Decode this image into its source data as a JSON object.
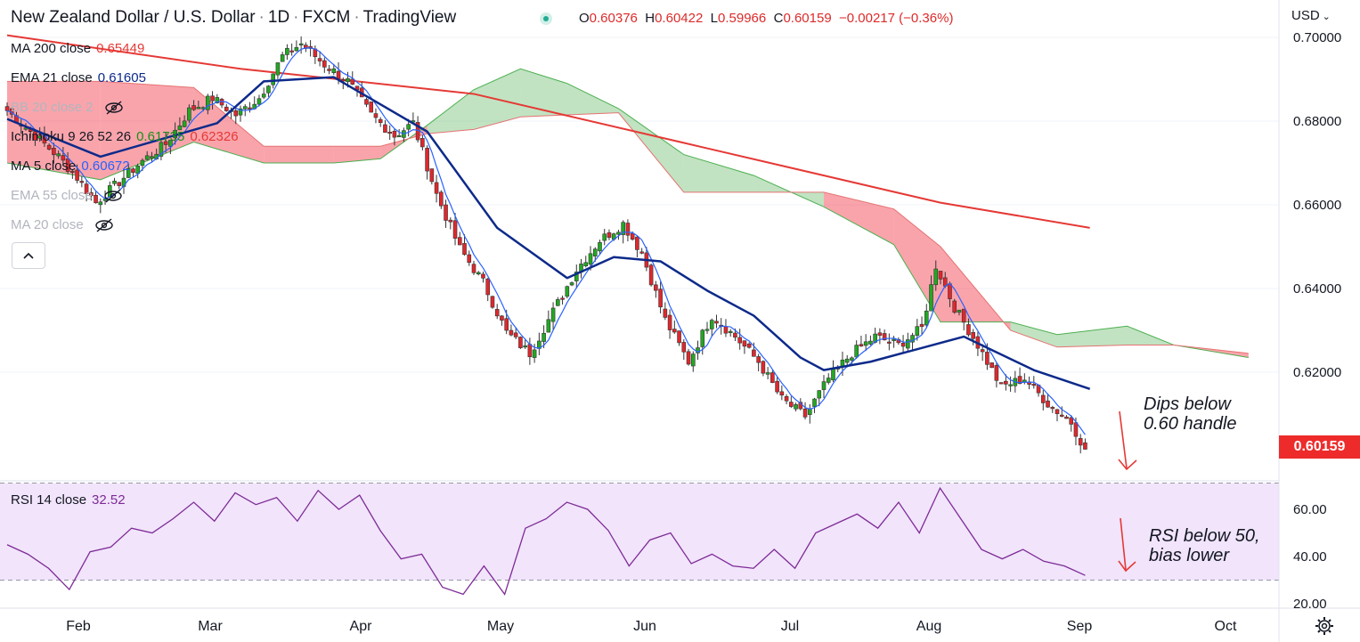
{
  "header": {
    "title": "New Zealand Dollar / U.S. Dollar",
    "interval": "1D",
    "source": "FXCM",
    "platform": "TradingView",
    "ohlc": {
      "o_label": "O",
      "o": "0.60376",
      "h_label": "H",
      "h": "0.60422",
      "l_label": "L",
      "l": "0.59966",
      "c_label": "C",
      "c": "0.60159",
      "change": "−0.00217 (−0.36%)"
    }
  },
  "indicators": [
    {
      "name": "MA 200 close",
      "value": "0.65449",
      "color": "#e53935",
      "visible": true
    },
    {
      "name": "EMA 21 close",
      "value": "0.61605",
      "color": "#0d2a8a",
      "visible": true
    },
    {
      "name": "BB 20 close 2",
      "value": "",
      "visible": false
    },
    {
      "name": "Ichimoku 9 26 52 26",
      "value": "0.61735",
      "value2": "0.62326",
      "color": "#1b8e1b",
      "color2": "#e53935",
      "visible": true
    },
    {
      "name": "MA 5 close",
      "value": "0.60672",
      "color": "#2962ff",
      "visible": true
    },
    {
      "name": "EMA 55 close",
      "value": "",
      "visible": false
    },
    {
      "name": "MA 20 close",
      "value": "",
      "visible": false
    }
  ],
  "currency": "USD",
  "last_price": "0.60159",
  "rsi": {
    "name": "RSI 14 close",
    "value": "32.52",
    "color": "#7e2b96"
  },
  "annotations": {
    "price_note_1": "Dips below",
    "price_note_2": "0.60 handle",
    "rsi_note_1": "RSI below 50,",
    "rsi_note_2": "bias lower"
  },
  "chart_data": {
    "type": "candlestick",
    "y_axis": {
      "ticks": [
        "0.70000",
        "0.68000",
        "0.66000",
        "0.64000",
        "0.62000"
      ],
      "range": [
        0.595,
        0.703
      ]
    },
    "rsi_axis": {
      "ticks": [
        "60.00",
        "40.00",
        "20.00"
      ],
      "range": [
        20,
        70
      ],
      "band": [
        30,
        70
      ]
    },
    "x_axis": {
      "ticks": [
        "Feb",
        "Mar",
        "Apr",
        "May",
        "Jun",
        "Jul",
        "Aug",
        "Sep",
        "Oct"
      ]
    },
    "close_path": [
      {
        "x": 0,
        "y": 0.6825
      },
      {
        "x": 6,
        "y": 0.6765
      },
      {
        "x": 11,
        "y": 0.6715
      },
      {
        "x": 15,
        "y": 0.6665
      },
      {
        "x": 19,
        "y": 0.6605
      },
      {
        "x": 24,
        "y": 0.6655
      },
      {
        "x": 29,
        "y": 0.6705
      },
      {
        "x": 34,
        "y": 0.6745
      },
      {
        "x": 39,
        "y": 0.6825
      },
      {
        "x": 44,
        "y": 0.6855
      },
      {
        "x": 49,
        "y": 0.6815
      },
      {
        "x": 54,
        "y": 0.6855
      },
      {
        "x": 59,
        "y": 0.6955
      },
      {
        "x": 63,
        "y": 0.6985
      },
      {
        "x": 68,
        "y": 0.6935
      },
      {
        "x": 73,
        "y": 0.6895
      },
      {
        "x": 78,
        "y": 0.6815
      },
      {
        "x": 83,
        "y": 0.6765
      },
      {
        "x": 87,
        "y": 0.6795
      },
      {
        "x": 92,
        "y": 0.6625
      },
      {
        "x": 97,
        "y": 0.6495
      },
      {
        "x": 102,
        "y": 0.6415
      },
      {
        "x": 107,
        "y": 0.6295
      },
      {
        "x": 112,
        "y": 0.6245
      },
      {
        "x": 117,
        "y": 0.6345
      },
      {
        "x": 122,
        "y": 0.6445
      },
      {
        "x": 127,
        "y": 0.6515
      },
      {
        "x": 132,
        "y": 0.6555
      },
      {
        "x": 136,
        "y": 0.6485
      },
      {
        "x": 141,
        "y": 0.6325
      },
      {
        "x": 146,
        "y": 0.6225
      },
      {
        "x": 151,
        "y": 0.6335
      },
      {
        "x": 156,
        "y": 0.6285
      },
      {
        "x": 161,
        "y": 0.6225
      },
      {
        "x": 166,
        "y": 0.6135
      },
      {
        "x": 171,
        "y": 0.6095
      },
      {
        "x": 176,
        "y": 0.6185
      },
      {
        "x": 181,
        "y": 0.6245
      },
      {
        "x": 186,
        "y": 0.6285
      },
      {
        "x": 191,
        "y": 0.6265
      },
      {
        "x": 196,
        "y": 0.6305
      },
      {
        "x": 199,
        "y": 0.6455
      },
      {
        "x": 203,
        "y": 0.6355
      },
      {
        "x": 208,
        "y": 0.6265
      },
      {
        "x": 213,
        "y": 0.6165
      },
      {
        "x": 218,
        "y": 0.6185
      },
      {
        "x": 223,
        "y": 0.6125
      },
      {
        "x": 228,
        "y": 0.608
      },
      {
        "x": 231,
        "y": 0.6015
      }
    ],
    "ma200": {
      "x": [
        0,
        50,
        100,
        150,
        200,
        232
      ],
      "y": [
        0.7005,
        0.6925,
        0.6865,
        0.6735,
        0.6605,
        0.6545
      ]
    },
    "ema21": {
      "x": [
        0,
        20,
        45,
        55,
        70,
        90,
        105,
        120,
        130,
        140,
        150,
        160,
        170,
        175,
        185,
        195,
        205,
        220,
        232
      ],
      "y": [
        0.6805,
        0.6715,
        0.6795,
        0.6895,
        0.6905,
        0.6775,
        0.6545,
        0.6425,
        0.6475,
        0.6465,
        0.6395,
        0.6335,
        0.6235,
        0.6205,
        0.6225,
        0.6255,
        0.6285,
        0.6205,
        0.616
      ]
    },
    "rsi_values": [
      45,
      41,
      35,
      26,
      42,
      44,
      52,
      50,
      56,
      63,
      55,
      67,
      62,
      65,
      55,
      68,
      60,
      66,
      51,
      39,
      41,
      27,
      24,
      36,
      24,
      52,
      56,
      63,
      60,
      51,
      36,
      47,
      50,
      37,
      41,
      36,
      35,
      43,
      35,
      50,
      54,
      58,
      52,
      63,
      50,
      69,
      56,
      43,
      39,
      43,
      38,
      36,
      32
    ]
  }
}
